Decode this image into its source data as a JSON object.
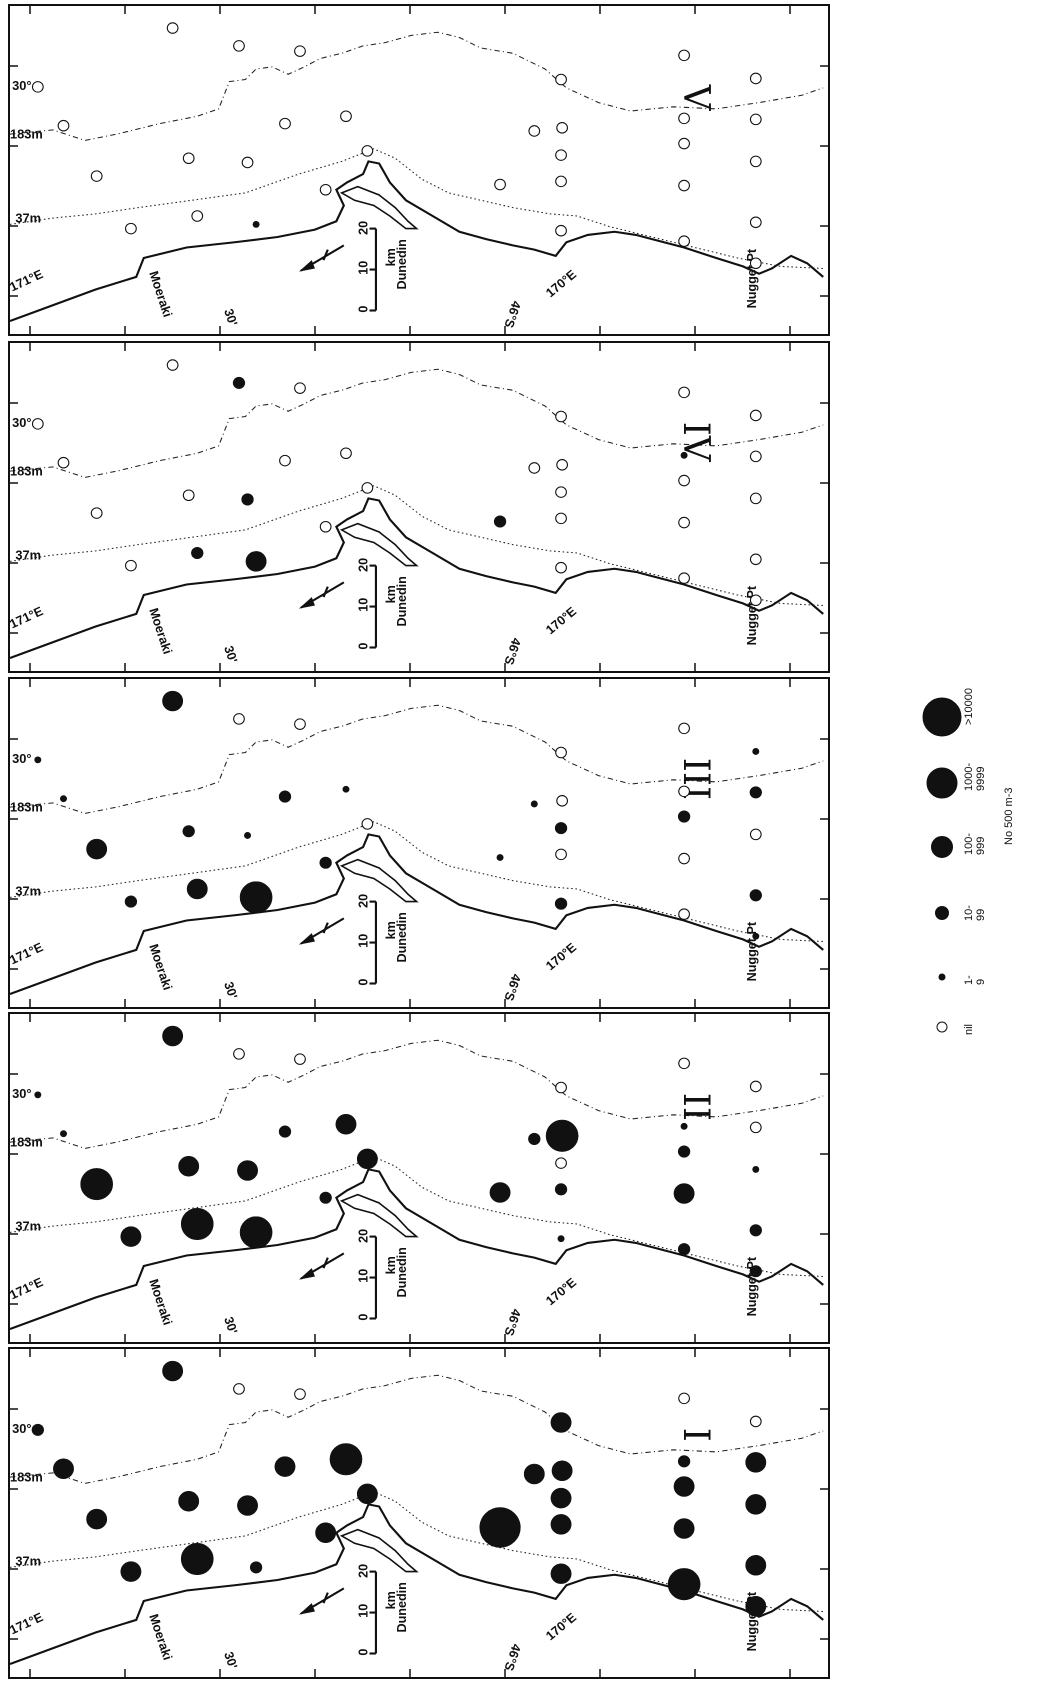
{
  "map_labels": {
    "lat_30": "30°",
    "depth_183": "183m",
    "depth_37": "37m",
    "lon_171": "171°E",
    "lon_170": "170°E",
    "lat_46": "46°S",
    "bottom_30": "30'",
    "moeraki": "Moeraki",
    "dunedin": "Dunedin",
    "scale_unit": "km",
    "scale_0": "0",
    "scale_10": "10",
    "scale_20": "20",
    "nugget": "Nugget Pt"
  },
  "panels": [
    {
      "id": "V",
      "numeral": "V",
      "stations": [
        "nil",
        "nil",
        "nil",
        "nil",
        "nil",
        "nil",
        "nil",
        "nil",
        "nil",
        "nil",
        "1-9",
        "nil",
        "nil",
        "nil",
        "nil",
        "nil",
        "nil",
        "nil",
        "nil",
        "nil",
        "nil",
        "nil",
        "nil",
        "nil",
        "nil",
        "nil",
        "nil",
        "nil",
        "nil",
        "nil",
        "nil",
        "nil"
      ]
    },
    {
      "id": "IV",
      "numeral": "IV",
      "stations": [
        "nil",
        "nil",
        "nil",
        "nil",
        "nil",
        "10-99",
        "nil",
        "nil",
        "10-99",
        "10-99",
        "100-999",
        "nil",
        "nil",
        "nil",
        "nil",
        "nil",
        "10-99",
        "nil",
        "nil",
        "nil",
        "nil",
        "nil",
        "nil",
        "nil",
        "nil",
        "nil",
        "nil",
        "nil",
        "1-9",
        "nil",
        "nil",
        "nil"
      ]
    },
    {
      "id": "III",
      "numeral": "III",
      "stations": [
        "1-9",
        "1-9",
        "100-999",
        "10-99",
        "100-999",
        "nil",
        "nil",
        "10-99",
        "1-9",
        "100-999",
        "1000-9999",
        "10-99",
        "1-9",
        "10-99",
        "nil",
        "1-9",
        "1-9",
        "nil",
        "10-99",
        "nil",
        "10-99",
        "10-99",
        "nil",
        "nil",
        "nil",
        "10-99",
        "1-9",
        "nil",
        "nil",
        "10-99",
        "nil",
        "1-9"
      ]
    },
    {
      "id": "II",
      "numeral": "II",
      "stations": [
        "1-9",
        "1-9",
        "1000-9999",
        "100-999",
        "100-999",
        "nil",
        "nil",
        "100-999",
        "100-999",
        "1000-9999",
        "1000-9999",
        "10-99",
        "100-999",
        "10-99",
        "100-999",
        "10-99",
        "100-999",
        "1000-9999",
        "nil",
        "10-99",
        "1-9",
        "10-99",
        "100-999",
        "1-9",
        "10-99",
        "10-99",
        "10-99",
        "nil",
        "1-9",
        "nil",
        "nil",
        "nil"
      ]
    },
    {
      "id": "I",
      "numeral": "I",
      "stations": [
        "10-99",
        "100-999",
        "100-999",
        "100-999",
        "100-999",
        "nil",
        "nil",
        "100-999",
        "100-999",
        "1000-9999",
        "10-99",
        "100-999",
        "1000-9999",
        "100-999",
        "100-999",
        "100-999",
        ">10000",
        "100-999",
        "100-999",
        "100-999",
        "100-999",
        "100-999",
        "100-999",
        "100-999",
        "1000-9999",
        "100-999",
        "100-999",
        "100-999",
        "10-99",
        "100-999",
        "nil",
        "nil"
      ]
    }
  ],
  "legend": {
    "title": "No 500 m-3",
    "classes": [
      {
        "line1": "nil",
        "line2": ""
      },
      {
        "line1": "1-",
        "line2": "9"
      },
      {
        "line1": "10-",
        "line2": "99"
      },
      {
        "line1": "100-",
        "line2": "999"
      },
      {
        "line1": "1000-",
        "line2": "9999"
      },
      {
        "line1": ">10000",
        "line2": ""
      }
    ]
  }
}
